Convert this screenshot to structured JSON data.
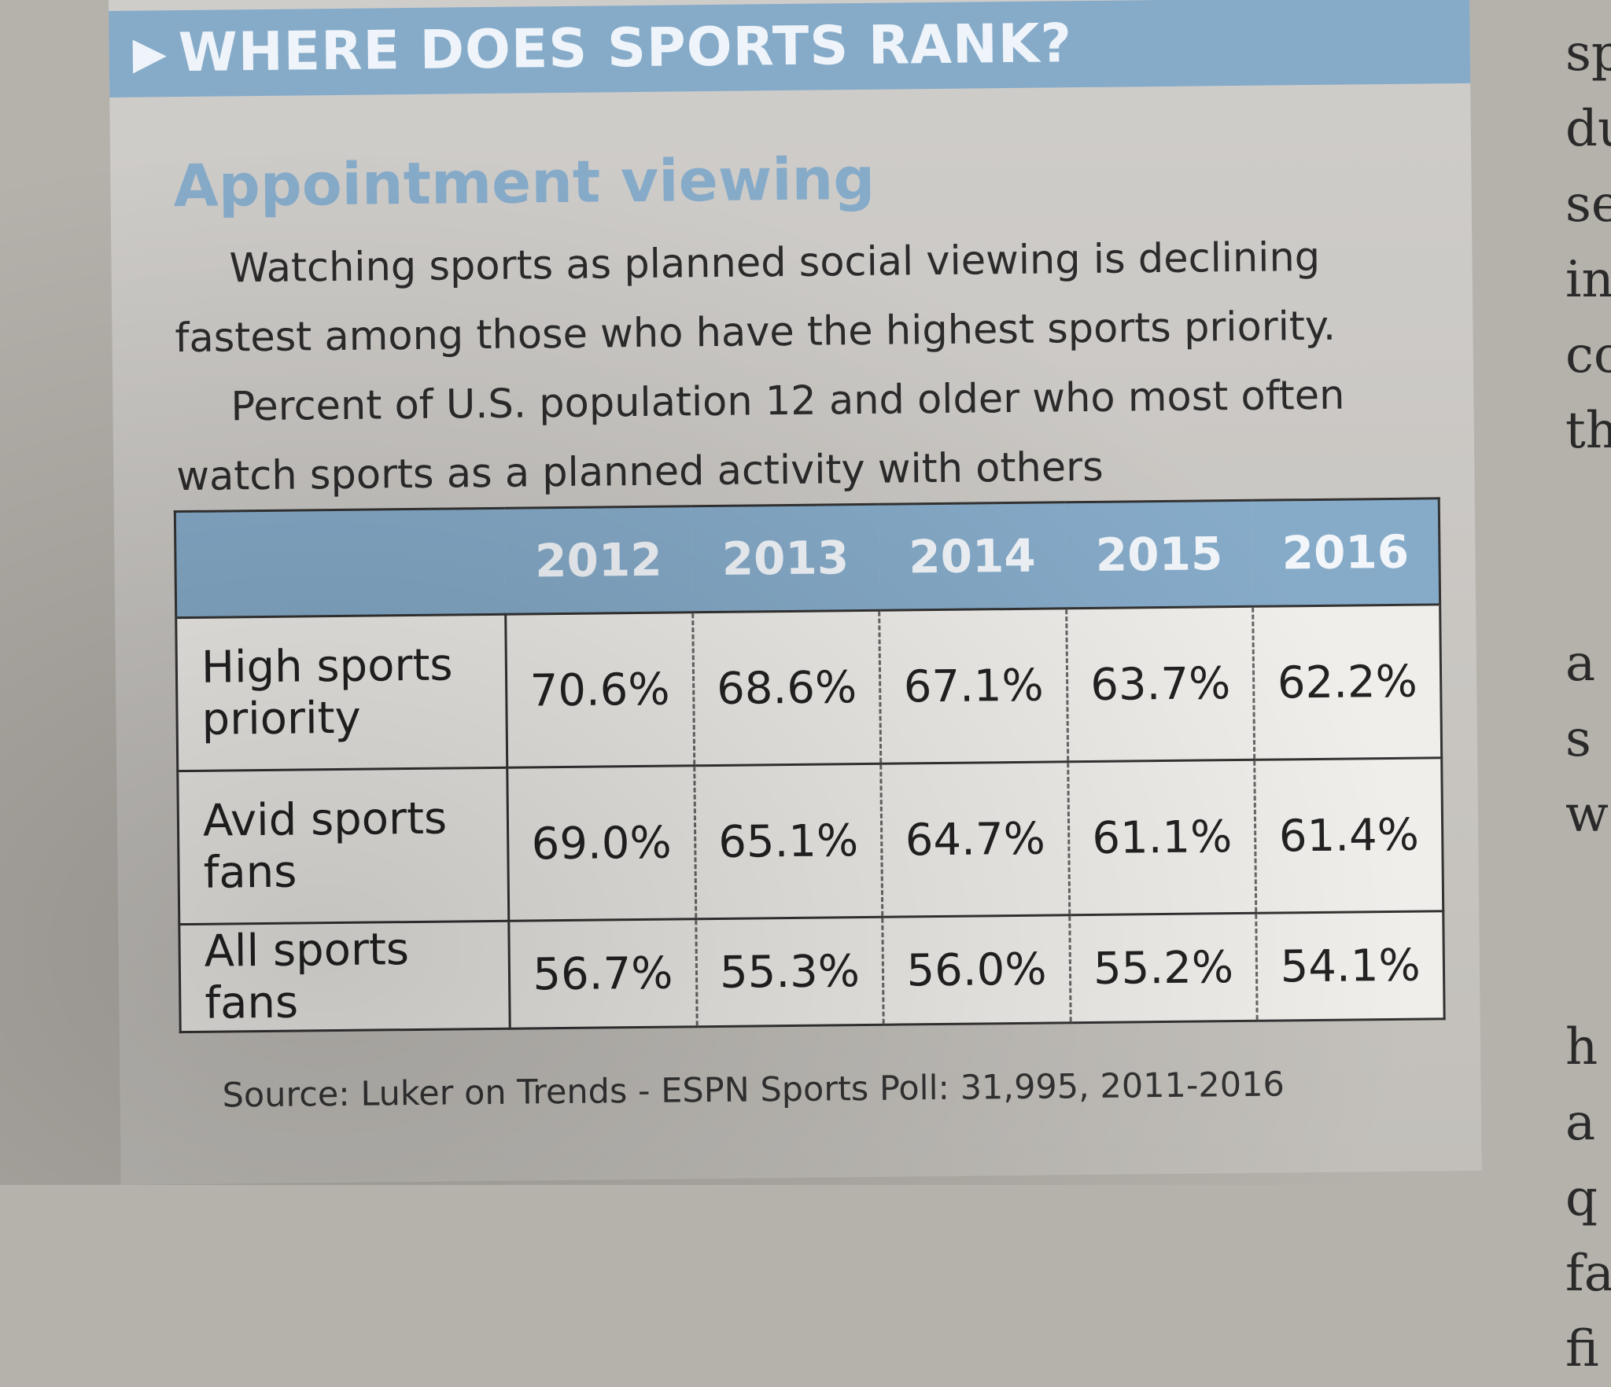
{
  "banner": {
    "arrow": "▶",
    "title": "WHERE DOES SPORTS RANK?"
  },
  "subhead": "Appointment viewing",
  "description": [
    "Watching sports as planned social viewing is declining fastest among those who have the highest sports priority.",
    "Percent of U.S. population 12 and older who most often watch sports as a planned activity with others"
  ],
  "chart_data": {
    "type": "table",
    "title": "Appointment viewing",
    "unit": "percent",
    "columns": [
      "2012",
      "2013",
      "2014",
      "2015",
      "2016"
    ],
    "rows": [
      {
        "label": "High sports priority",
        "values": [
          "70.6%",
          "68.6%",
          "67.1%",
          "63.7%",
          "62.2%"
        ]
      },
      {
        "label": "Avid sports fans",
        "values": [
          "69.0%",
          "65.1%",
          "64.7%",
          "61.1%",
          "61.4%"
        ]
      },
      {
        "label": "All sports fans",
        "values": [
          "56.7%",
          "55.3%",
          "56.0%",
          "55.2%",
          "54.1%"
        ]
      }
    ]
  },
  "source": "Source: Luker on Trends - ESPN Sports Poll: 31,995, 2011-2016",
  "adjacent_column": [
    "sp",
    "du",
    "se",
    "in",
    "co",
    "th",
    "a",
    "s",
    "w",
    "h",
    "a",
    "q",
    "fa",
    "fi"
  ]
}
